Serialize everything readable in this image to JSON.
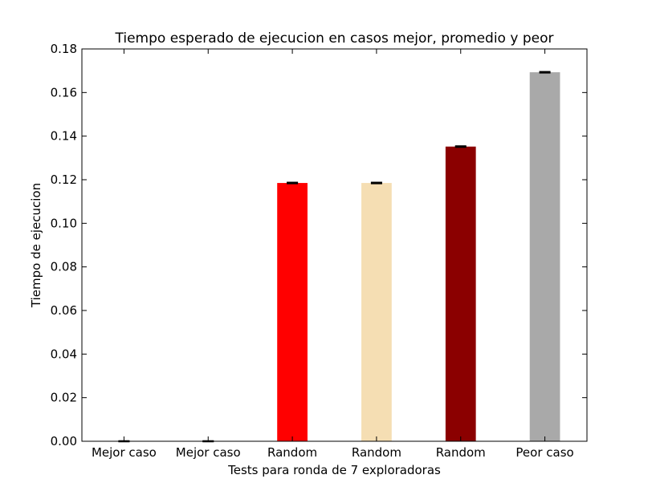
{
  "chart_data": {
    "type": "bar",
    "title": "Tiempo esperado de ejecucion en casos mejor, promedio y peor",
    "xlabel": "Tests para ronda de 7 exploradoras",
    "ylabel": "Tiempo de ejecucion",
    "categories": [
      "Mejor caso",
      "Mejor caso",
      "Random",
      "Random",
      "Random",
      "Peor caso"
    ],
    "values": [
      0.0,
      0.0,
      0.1185,
      0.1185,
      0.1352,
      0.1693
    ],
    "errors": [
      0.0001,
      0.0001,
      0.0002,
      0.0002,
      0.0002,
      0.0002
    ],
    "colors": [
      "#0000ff",
      "#0000ff",
      "#ff0000",
      "#f5deb3",
      "#8b0000",
      "#a9a9a9"
    ],
    "ylim": [
      0,
      0.18
    ],
    "yticks": [
      "0.00",
      "0.02",
      "0.04",
      "0.06",
      "0.08",
      "0.10",
      "0.12",
      "0.14",
      "0.16",
      "0.18"
    ],
    "grid": false,
    "legend": "none"
  }
}
